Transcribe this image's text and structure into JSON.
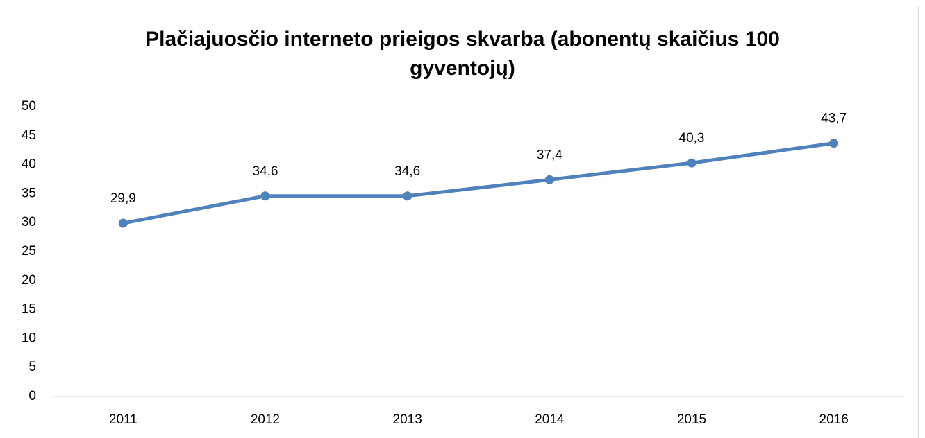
{
  "chart_data": {
    "type": "line",
    "title": "Plačiajuosčio interneto prieigos skvarba (abonentų skaičius 100 gyventojų)",
    "categories": [
      "2011",
      "2012",
      "2013",
      "2014",
      "2015",
      "2016"
    ],
    "series": [
      {
        "color": "#4f81bd",
        "values": [
          29.9,
          34.6,
          34.6,
          37.4,
          40.3,
          43.7
        ],
        "value_labels": [
          "29,9",
          "34,6",
          "34,6",
          "37,4",
          "40,3",
          "43,7"
        ]
      }
    ],
    "ylim": [
      0,
      50
    ],
    "yticks": [
      0,
      5,
      10,
      15,
      20,
      25,
      30,
      35,
      40,
      45,
      50
    ],
    "grid": false
  }
}
